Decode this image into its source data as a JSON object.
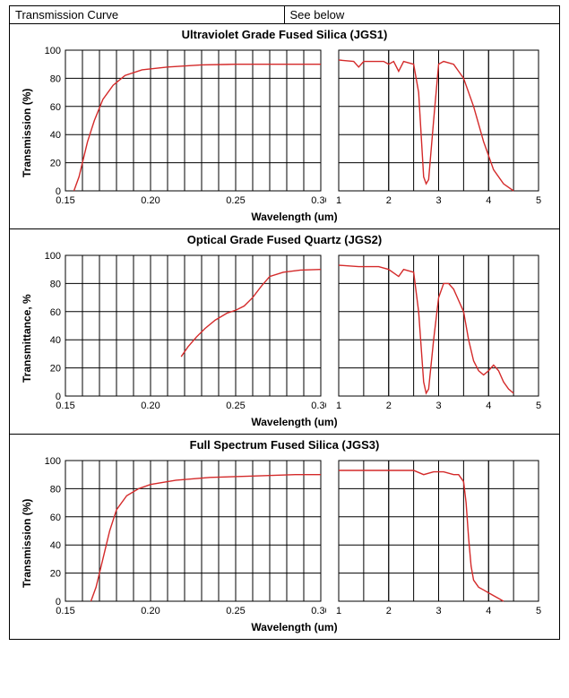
{
  "header": {
    "left_label": "Transmission Curve",
    "right_label": "See below"
  },
  "style": {
    "series_color": "#d42a2a",
    "grid_color": "#000000",
    "background_color": "#ffffff",
    "title_fontsize": 13,
    "label_fontsize": 12,
    "tick_fontsize": 11
  },
  "charts": [
    {
      "id": "jgs1",
      "title": "Ultraviolet Grade Fused Silica (JGS1)",
      "xlabel": "Wavelength (um)",
      "ylabel": "Transmission (%)",
      "ylim": [
        0,
        100
      ],
      "ytick_step": 20,
      "left_panel": {
        "xlim": [
          0.15,
          0.3
        ],
        "xticks": [
          0.15,
          0.2,
          0.25,
          0.3
        ],
        "minor_x_divisions": 5,
        "series": [
          [
            0.155,
            0
          ],
          [
            0.158,
            10
          ],
          [
            0.16,
            20
          ],
          [
            0.163,
            35
          ],
          [
            0.167,
            50
          ],
          [
            0.172,
            65
          ],
          [
            0.178,
            75
          ],
          [
            0.185,
            82
          ],
          [
            0.195,
            86
          ],
          [
            0.21,
            88
          ],
          [
            0.23,
            89.5
          ],
          [
            0.25,
            90
          ],
          [
            0.27,
            90
          ],
          [
            0.29,
            90
          ],
          [
            0.3,
            90
          ]
        ]
      },
      "right_panel": {
        "xlim": [
          1,
          5
        ],
        "xticks": [
          1,
          2,
          3,
          4,
          5
        ],
        "minor_x_divisions": 2,
        "series": [
          [
            1.0,
            93
          ],
          [
            1.3,
            92
          ],
          [
            1.4,
            88
          ],
          [
            1.5,
            92
          ],
          [
            1.9,
            92
          ],
          [
            2.0,
            90
          ],
          [
            2.1,
            92
          ],
          [
            2.2,
            85
          ],
          [
            2.3,
            92
          ],
          [
            2.5,
            90
          ],
          [
            2.6,
            70
          ],
          [
            2.7,
            10
          ],
          [
            2.75,
            5
          ],
          [
            2.8,
            8
          ],
          [
            2.9,
            50
          ],
          [
            3.0,
            90
          ],
          [
            3.1,
            92
          ],
          [
            3.3,
            90
          ],
          [
            3.5,
            80
          ],
          [
            3.7,
            60
          ],
          [
            3.9,
            35
          ],
          [
            4.1,
            15
          ],
          [
            4.3,
            5
          ],
          [
            4.5,
            0
          ]
        ]
      }
    },
    {
      "id": "jgs2",
      "title": "Optical Grade Fused Quartz  (JGS2)",
      "xlabel": "Wavelength (um)",
      "ylabel": "Transmittance, %",
      "ylim": [
        0,
        100
      ],
      "ytick_step": 20,
      "left_panel": {
        "xlim": [
          0.15,
          0.3
        ],
        "xticks": [
          0.15,
          0.2,
          0.25,
          0.3
        ],
        "minor_x_divisions": 5,
        "series": [
          [
            0.218,
            28
          ],
          [
            0.222,
            35
          ],
          [
            0.227,
            42
          ],
          [
            0.232,
            48
          ],
          [
            0.238,
            54
          ],
          [
            0.245,
            59
          ],
          [
            0.25,
            61
          ],
          [
            0.255,
            64
          ],
          [
            0.26,
            70
          ],
          [
            0.265,
            78
          ],
          [
            0.27,
            85
          ],
          [
            0.278,
            88
          ],
          [
            0.288,
            89.5
          ],
          [
            0.3,
            90
          ]
        ]
      },
      "right_panel": {
        "xlim": [
          1,
          5
        ],
        "xticks": [
          1,
          2,
          3,
          4,
          5
        ],
        "minor_x_divisions": 2,
        "series": [
          [
            1.0,
            93
          ],
          [
            1.4,
            92
          ],
          [
            1.8,
            92
          ],
          [
            2.0,
            90
          ],
          [
            2.2,
            85
          ],
          [
            2.3,
            90
          ],
          [
            2.5,
            88
          ],
          [
            2.6,
            60
          ],
          [
            2.7,
            10
          ],
          [
            2.75,
            2
          ],
          [
            2.8,
            5
          ],
          [
            2.9,
            40
          ],
          [
            3.0,
            70
          ],
          [
            3.1,
            80
          ],
          [
            3.2,
            80
          ],
          [
            3.3,
            76
          ],
          [
            3.5,
            60
          ],
          [
            3.6,
            40
          ],
          [
            3.7,
            25
          ],
          [
            3.8,
            18
          ],
          [
            3.9,
            15
          ],
          [
            4.0,
            18
          ],
          [
            4.1,
            22
          ],
          [
            4.2,
            18
          ],
          [
            4.3,
            10
          ],
          [
            4.4,
            5
          ],
          [
            4.5,
            2
          ]
        ]
      }
    },
    {
      "id": "jgs3",
      "title": "Full Spectrum Fused Silica (JGS3)",
      "xlabel": "Wavelength (um)",
      "ylabel": "Transmission (%)",
      "ylim": [
        0,
        100
      ],
      "ytick_step": 20,
      "left_panel": {
        "xlim": [
          0.15,
          0.3
        ],
        "xticks": [
          0.15,
          0.2,
          0.25,
          0.3
        ],
        "minor_x_divisions": 5,
        "series": [
          [
            0.165,
            0
          ],
          [
            0.168,
            10
          ],
          [
            0.172,
            30
          ],
          [
            0.176,
            50
          ],
          [
            0.18,
            65
          ],
          [
            0.186,
            75
          ],
          [
            0.193,
            80
          ],
          [
            0.2,
            83
          ],
          [
            0.215,
            86
          ],
          [
            0.235,
            88
          ],
          [
            0.26,
            89
          ],
          [
            0.285,
            90
          ],
          [
            0.3,
            90
          ]
        ]
      },
      "right_panel": {
        "xlim": [
          1,
          5
        ],
        "xticks": [
          1,
          2,
          3,
          4,
          5
        ],
        "minor_x_divisions": 2,
        "series": [
          [
            1.0,
            93
          ],
          [
            1.5,
            93
          ],
          [
            2.0,
            93
          ],
          [
            2.5,
            93
          ],
          [
            2.7,
            90
          ],
          [
            2.9,
            92
          ],
          [
            3.1,
            92
          ],
          [
            3.3,
            90
          ],
          [
            3.4,
            90
          ],
          [
            3.5,
            85
          ],
          [
            3.55,
            70
          ],
          [
            3.6,
            45
          ],
          [
            3.65,
            25
          ],
          [
            3.7,
            15
          ],
          [
            3.8,
            10
          ],
          [
            3.9,
            8
          ],
          [
            4.0,
            6
          ],
          [
            4.1,
            4
          ],
          [
            4.2,
            2
          ],
          [
            4.3,
            0
          ]
        ]
      }
    }
  ]
}
